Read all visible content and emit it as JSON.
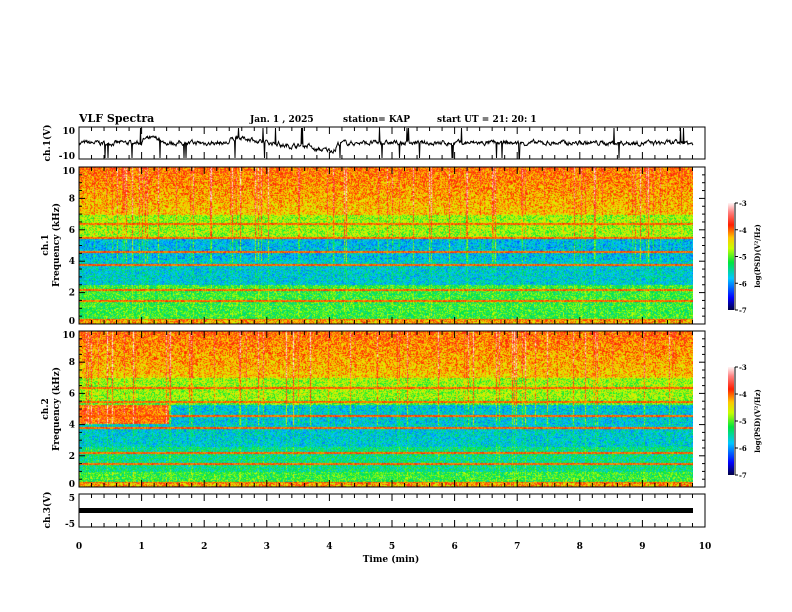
{
  "header": {
    "title": "VLF Spectra",
    "date": "Jan. 1 , 2025",
    "station": "station= KAP",
    "start": "start UT =  21: 20: 1"
  },
  "chart_data": [
    {
      "type": "line",
      "name": "ch1",
      "ylabel": "ch.1(V)",
      "ylim": [
        -10,
        10
      ],
      "yticks": [
        "10",
        "-10"
      ],
      "xlim": [
        0,
        10
      ],
      "note": "noisy waveform around 0 V, dips near 2.6 and 3.7 min"
    },
    {
      "type": "heatmap",
      "name": "ch1-spectrogram",
      "ylabel": "ch.1\nFrequency (kHz)",
      "ylabel_lines": [
        "ch.1",
        "Frequency  (kHz)"
      ],
      "ylim": [
        0,
        10
      ],
      "yticks": [
        "0",
        "2",
        "4",
        "6",
        "8",
        "10"
      ],
      "xlim": [
        0,
        10
      ],
      "data_end_min": 9.83,
      "colorbar": {
        "label": "log(PSD)(V²/Hz)",
        "range": [
          -7,
          -3
        ],
        "ticks": [
          "-3",
          "-4",
          "-5",
          "-6",
          "-7"
        ]
      }
    },
    {
      "type": "heatmap",
      "name": "ch2-spectrogram",
      "ylabel_lines": [
        "ch.2",
        "Frequency  (kHz)"
      ],
      "ylim": [
        0,
        10
      ],
      "yticks": [
        "0",
        "2",
        "4",
        "6",
        "8",
        "10"
      ],
      "xlim": [
        0,
        10
      ],
      "data_end_min": 9.83,
      "colorbar": {
        "label": "log(PSD)(V²/Hz)",
        "range": [
          -7,
          -3
        ],
        "ticks": [
          "-3",
          "-4",
          "-5",
          "-6",
          "-7"
        ]
      }
    },
    {
      "type": "line",
      "name": "ch3",
      "ylabel": "ch.3(V)",
      "ylim": [
        -5,
        5
      ],
      "yticks": [
        "5",
        "-5"
      ],
      "xlim": [
        0,
        10
      ],
      "constant_value": -0.3
    }
  ],
  "xaxis": {
    "label": "Time  (min)",
    "ticks": [
      "0",
      "1",
      "2",
      "3",
      "4",
      "5",
      "6",
      "7",
      "8",
      "9",
      "10"
    ]
  }
}
